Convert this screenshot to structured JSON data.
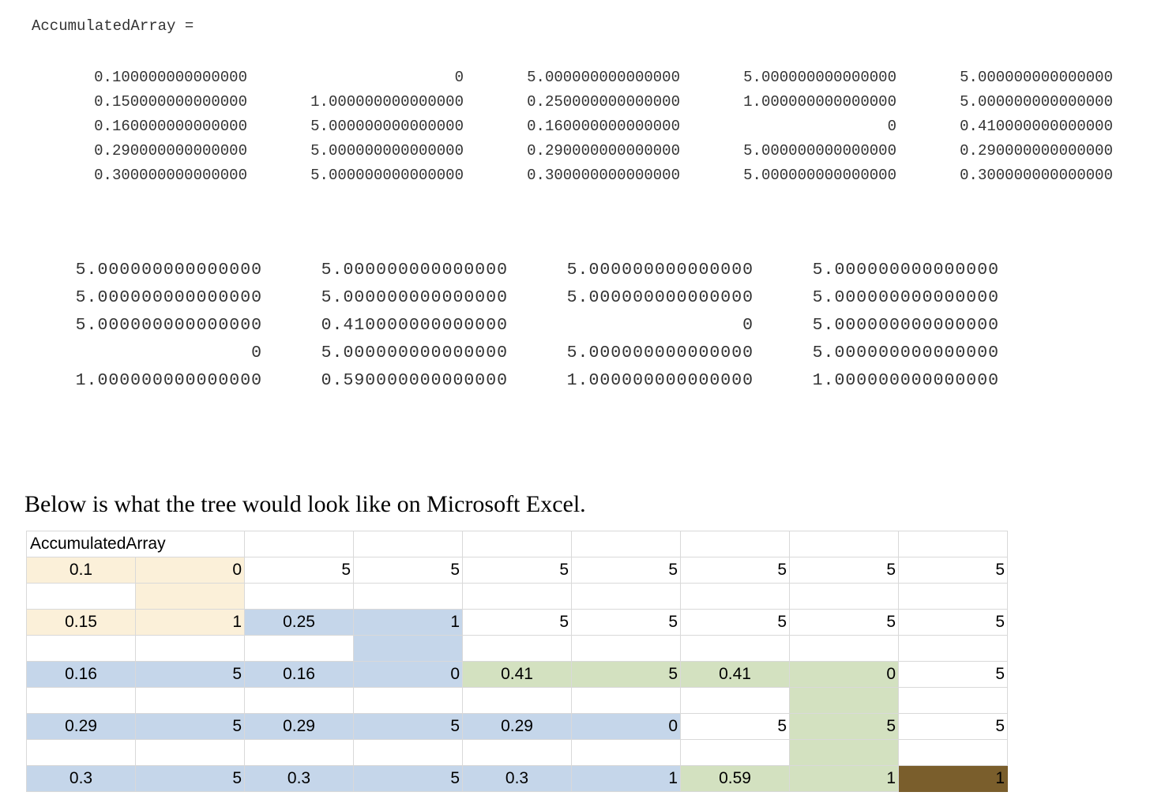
{
  "command_window": {
    "variable_label": "AccumulatedArray =",
    "output_part1": [
      [
        "0.100000000000000",
        "0",
        "5.000000000000000",
        "5.000000000000000",
        "5.000000000000000"
      ],
      [
        "0.150000000000000",
        "1.000000000000000",
        "0.250000000000000",
        "1.000000000000000",
        "5.000000000000000"
      ],
      [
        "0.160000000000000",
        "5.000000000000000",
        "0.160000000000000",
        "0",
        "0.410000000000000"
      ],
      [
        "0.290000000000000",
        "5.000000000000000",
        "0.290000000000000",
        "5.000000000000000",
        "0.290000000000000"
      ],
      [
        "0.300000000000000",
        "5.000000000000000",
        "0.300000000000000",
        "5.000000000000000",
        "0.300000000000000"
      ]
    ],
    "output_part2": [
      [
        "5.000000000000000",
        "5.000000000000000",
        "5.000000000000000",
        "5.000000000000000"
      ],
      [
        "5.000000000000000",
        "5.000000000000000",
        "5.000000000000000",
        "5.000000000000000"
      ],
      [
        "5.000000000000000",
        "0.410000000000000",
        "0",
        "5.000000000000000"
      ],
      [
        "0",
        "5.000000000000000",
        "5.000000000000000",
        "5.000000000000000"
      ],
      [
        "1.000000000000000",
        "0.590000000000000",
        "1.000000000000000",
        "1.000000000000000"
      ]
    ]
  },
  "caption": "Below is what the tree would look like on Microsoft Excel.",
  "spreadsheet": {
    "header_label": "AccumulatedArray",
    "colors": {
      "beige": "#fbf0d9",
      "blue": "#c5d6ea",
      "green": "#d3e1c0",
      "brown": "#7a5e2c",
      "gridline": "#d9d9d9"
    },
    "rows": [
      {
        "values": [
          "",
          "",
          "",
          "",
          "",
          "",
          "",
          "",
          ""
        ],
        "fills": [
          "",
          "",
          "",
          "",
          "",
          "",
          "",
          "",
          ""
        ]
      },
      {
        "values": [
          "0.1",
          "0",
          "5",
          "5",
          "5",
          "5",
          "5",
          "5",
          "5"
        ],
        "fills": [
          "beige",
          "beige",
          "",
          "",
          "",
          "",
          "",
          "",
          ""
        ]
      },
      {
        "values": [
          "",
          "",
          "",
          "",
          "",
          "",
          "",
          "",
          ""
        ],
        "fills": [
          "",
          "beige",
          "",
          "",
          "",
          "",
          "",
          "",
          ""
        ]
      },
      {
        "values": [
          "0.15",
          "1",
          "0.25",
          "1",
          "5",
          "5",
          "5",
          "5",
          "5"
        ],
        "fills": [
          "beige",
          "beige",
          "blue",
          "blue",
          "",
          "",
          "",
          "",
          ""
        ]
      },
      {
        "values": [
          "",
          "",
          "",
          "",
          "",
          "",
          "",
          "",
          ""
        ],
        "fills": [
          "",
          "",
          "",
          "blue",
          "",
          "",
          "",
          "",
          ""
        ]
      },
      {
        "values": [
          "0.16",
          "5",
          "0.16",
          "0",
          "0.41",
          "5",
          "0.41",
          "0",
          "5"
        ],
        "fills": [
          "blue",
          "blue",
          "blue",
          "blue",
          "green",
          "green",
          "green",
          "green",
          ""
        ]
      },
      {
        "values": [
          "",
          "",
          "",
          "",
          "",
          "",
          "",
          "",
          ""
        ],
        "fills": [
          "",
          "",
          "",
          "",
          "",
          "",
          "",
          "green",
          ""
        ]
      },
      {
        "values": [
          "0.29",
          "5",
          "0.29",
          "5",
          "0.29",
          "0",
          "5",
          "5",
          "5"
        ],
        "fills": [
          "blue",
          "blue",
          "blue",
          "blue",
          "blue",
          "blue",
          "",
          "green",
          ""
        ]
      },
      {
        "values": [
          "",
          "",
          "",
          "",
          "",
          "",
          "",
          "",
          ""
        ],
        "fills": [
          "",
          "",
          "",
          "",
          "",
          "",
          "",
          "green",
          ""
        ]
      },
      {
        "values": [
          "0.3",
          "5",
          "0.3",
          "5",
          "0.3",
          "1",
          "0.59",
          "1",
          "1"
        ],
        "fills": [
          "blue",
          "blue",
          "blue",
          "blue",
          "blue",
          "blue",
          "green",
          "green",
          "brown"
        ]
      }
    ]
  }
}
